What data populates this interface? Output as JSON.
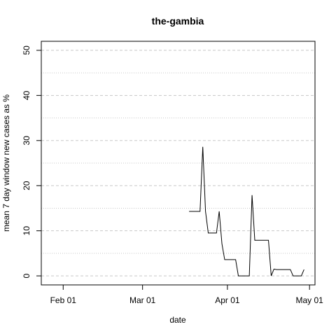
{
  "chart_data": {
    "type": "line",
    "title": "the-gambia",
    "xlabel": "date",
    "ylabel": "mean  7  day window new cases as %",
    "x_ticks": [
      "2020-02-01",
      "2020-03-01",
      "2020-04-01",
      "2020-05-01"
    ],
    "x_tick_labels": [
      "Feb 01",
      "Mar 01",
      "Apr 01",
      "May 01"
    ],
    "xlim": [
      "2020-01-24",
      "2020-05-03"
    ],
    "ylim": [
      -2,
      52
    ],
    "y_ticks": [
      0,
      10,
      20,
      30,
      40,
      50
    ],
    "y_tick_labels": [
      "0",
      "10",
      "20",
      "30",
      "40",
      "50"
    ],
    "grid": "horizontal dashed at every 5 units",
    "series": [
      {
        "color": "#000000",
        "points": [
          [
            "2020-03-18",
            14.3
          ],
          [
            "2020-03-22",
            14.3
          ],
          [
            "2020-03-23",
            28.6
          ],
          [
            "2020-03-24",
            14.3
          ],
          [
            "2020-03-25",
            9.5
          ],
          [
            "2020-03-28",
            9.5
          ],
          [
            "2020-03-29",
            14.3
          ],
          [
            "2020-03-30",
            7.1
          ],
          [
            "2020-03-31",
            3.6
          ],
          [
            "2020-04-04",
            3.6
          ],
          [
            "2020-04-05",
            0
          ],
          [
            "2020-04-09",
            0
          ],
          [
            "2020-04-10",
            17.9
          ],
          [
            "2020-04-11",
            7.9
          ],
          [
            "2020-04-16",
            7.9
          ],
          [
            "2020-04-17",
            0
          ],
          [
            "2020-04-18",
            1.5
          ],
          [
            "2020-04-19",
            1.4
          ],
          [
            "2020-04-24",
            1.4
          ],
          [
            "2020-04-25",
            0
          ],
          [
            "2020-04-28",
            0
          ],
          [
            "2020-04-29",
            1.4
          ]
        ]
      }
    ]
  }
}
